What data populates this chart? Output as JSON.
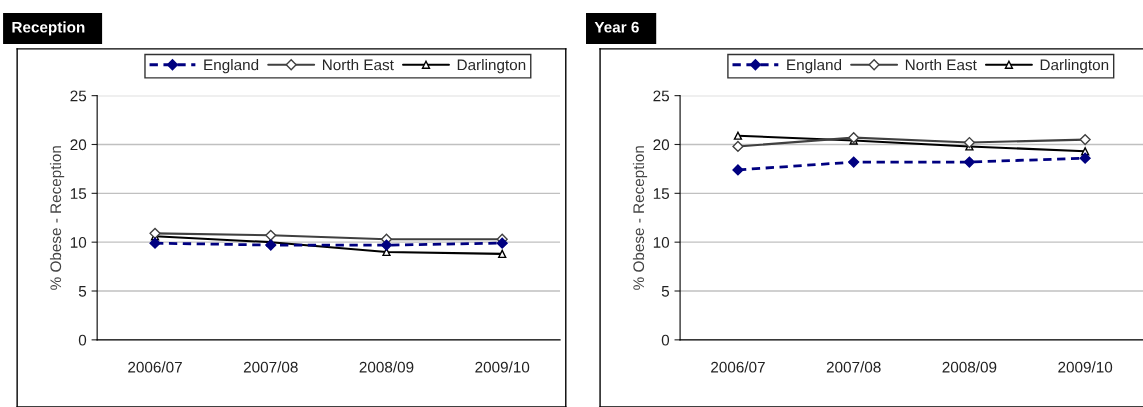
{
  "chart_data": [
    {
      "type": "line",
      "title": "Reception",
      "ylabel": "% Obese - Reception",
      "categories": [
        "2006/07",
        "2007/08",
        "2008/09",
        "2009/10"
      ],
      "ylim": [
        0,
        25
      ],
      "yticks": [
        0,
        5,
        10,
        15,
        20,
        25
      ],
      "grid": "y",
      "legend": "top",
      "series": [
        {
          "name": "England",
          "color": "#000080",
          "marker": "diamond",
          "line_style": "dashed",
          "values": [
            9.9,
            9.7,
            9.7,
            9.9
          ]
        },
        {
          "name": "North East",
          "color": "#404040",
          "marker": "diamond",
          "line_style": "solid",
          "values": [
            10.9,
            10.7,
            10.3,
            10.3
          ]
        },
        {
          "name": "Darlington",
          "color": "#000000",
          "marker": "triangle",
          "line_style": "solid",
          "values": [
            10.6,
            10.0,
            9.0,
            8.8
          ]
        }
      ]
    },
    {
      "type": "line",
      "title": "Year 6",
      "ylabel": "% Obese - Reception",
      "categories": [
        "2006/07",
        "2007/08",
        "2008/09",
        "2009/10"
      ],
      "ylim": [
        0,
        25
      ],
      "yticks": [
        0,
        5,
        10,
        15,
        20,
        25
      ],
      "grid": "y",
      "legend": "top",
      "series": [
        {
          "name": "England",
          "color": "#000080",
          "marker": "diamond",
          "line_style": "dashed",
          "values": [
            17.4,
            18.2,
            18.2,
            18.6
          ]
        },
        {
          "name": "North East",
          "color": "#404040",
          "marker": "diamond",
          "line_style": "solid",
          "values": [
            19.8,
            20.7,
            20.2,
            20.5
          ]
        },
        {
          "name": "Darlington",
          "color": "#000000",
          "marker": "triangle",
          "line_style": "solid",
          "values": [
            20.9,
            20.4,
            19.8,
            19.3
          ]
        }
      ]
    }
  ]
}
